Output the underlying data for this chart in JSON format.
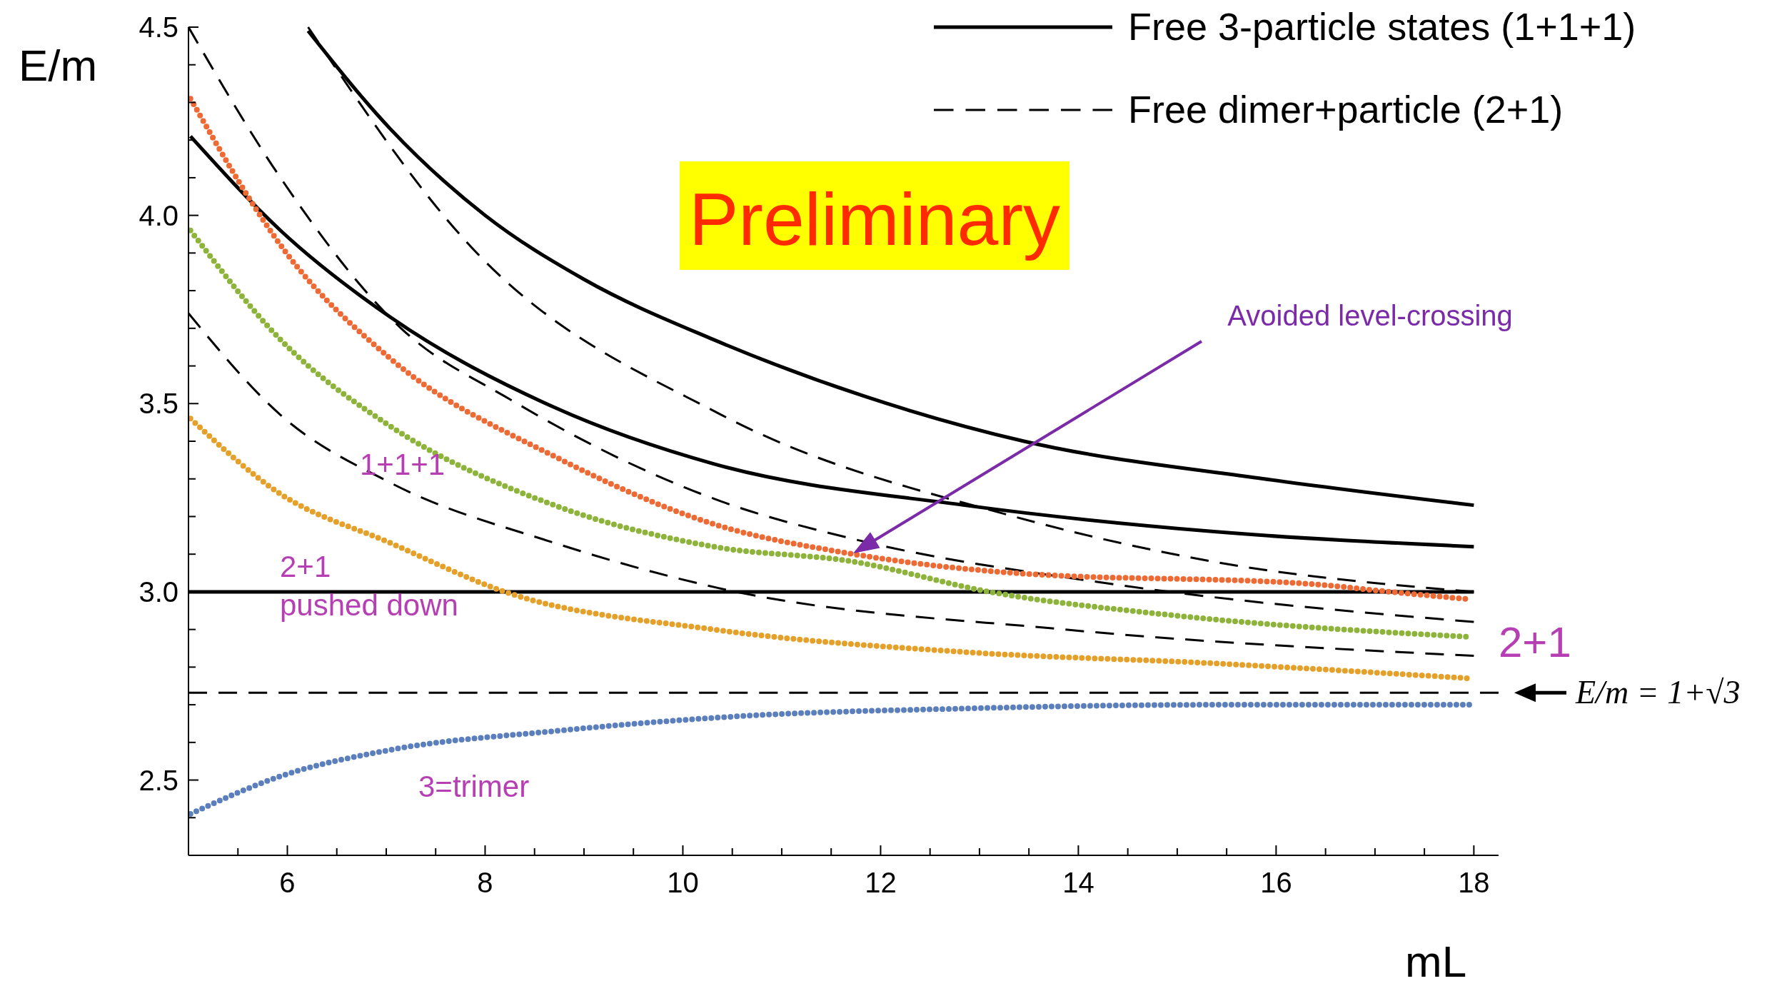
{
  "chart_data": {
    "type": "line",
    "xlabel": "mL",
    "ylabel": "E/m",
    "xlim": [
      5,
      18.25
    ],
    "ylim": [
      2.3,
      4.5
    ],
    "xticks": [
      {
        "value": 5,
        "label": null
      },
      {
        "value": 5.5,
        "label": null
      },
      6,
      {
        "value": 6.5,
        "label": null
      },
      {
        "value": 7,
        "label": null
      },
      {
        "value": 7.5,
        "label": null
      },
      8,
      {
        "value": 8.5,
        "label": null
      },
      {
        "value": 9,
        "label": null
      },
      {
        "value": 9.5,
        "label": null
      },
      10,
      {
        "value": 10.5,
        "label": null
      },
      {
        "value": 11,
        "label": null
      },
      {
        "value": 11.5,
        "label": null
      },
      12,
      {
        "value": 12.5,
        "label": null
      },
      {
        "value": 13,
        "label": null
      },
      {
        "value": 13.5,
        "label": null
      },
      14,
      {
        "value": 14.5,
        "label": null
      },
      {
        "value": 15,
        "label": null
      },
      {
        "value": 15.5,
        "label": null
      },
      16,
      {
        "value": 16.5,
        "label": null
      },
      {
        "value": 17,
        "label": null
      },
      {
        "value": 17.5,
        "label": null
      },
      18
    ],
    "yticks": [
      {
        "value": 2.3,
        "label": null
      },
      {
        "value": 2.4,
        "label": null
      },
      2.5,
      {
        "value": 2.6,
        "label": null
      },
      {
        "value": 2.7,
        "label": null
      },
      {
        "value": 2.8,
        "label": null
      },
      {
        "value": 2.9,
        "label": null
      },
      {
        "value": 3,
        "label": "3.0"
      },
      {
        "value": 3.1,
        "label": null
      },
      {
        "value": 3.2,
        "label": null
      },
      {
        "value": 3.3,
        "label": null
      },
      {
        "value": 3.4,
        "label": null
      },
      3.5,
      {
        "value": 3.6,
        "label": null
      },
      {
        "value": 3.7,
        "label": null
      },
      {
        "value": 3.8,
        "label": null
      },
      {
        "value": 3.9,
        "label": null
      },
      {
        "value": 4,
        "label": "4.0"
      },
      {
        "value": 4.1,
        "label": null
      },
      {
        "value": 4.2,
        "label": null
      },
      {
        "value": 4.3,
        "label": null
      },
      {
        "value": 4.4,
        "label": null
      },
      4.5
    ],
    "grid": false,
    "legend": "top right",
    "series": [
      {
        "name": "Free 3-particle states (1+1+1)",
        "color": "#000000",
        "line_style": "solid",
        "x": [
          6.21,
          7.04,
          8,
          9,
          10.31,
          11.83,
          13.45,
          15.88,
          18
        ],
        "values": [
          4.49,
          4.23,
          4,
          3.83,
          3.67,
          3.52,
          3.4,
          3.3,
          3.23
        ]
      },
      {
        "color": "#000000",
        "line_style": "solid",
        "x": [
          5.02,
          5.93,
          7.04,
          8.7,
          10.31,
          12.85,
          15.37,
          18
        ],
        "values": [
          4.21,
          3.96,
          3.73,
          3.49,
          3.34,
          3.23,
          3.16,
          3.12
        ]
      },
      {
        "color": "#000000",
        "line_style": "solid",
        "x": [
          5,
          18
        ],
        "values": [
          3,
          3
        ]
      },
      {
        "name": "Free dimer+particle (2+1)",
        "color": "#000000",
        "line_style": "dashed",
        "x": [
          6.21,
          7.81,
          10.39,
          13.35,
          15.37,
          18
        ],
        "values": [
          4.5,
          3.93,
          3.47,
          3.2,
          3.08,
          3
        ]
      },
      {
        "color": "#000000",
        "line_style": "dashed",
        "x": [
          5,
          5.93,
          7.15,
          8.26,
          10.39,
          11.73,
          14.36,
          18
        ],
        "values": [
          4.5,
          4.1,
          3.7,
          3.51,
          3.24,
          3.14,
          3.02,
          2.92
        ]
      },
      {
        "color": "#000000",
        "line_style": "dashed",
        "x": [
          5,
          5.93,
          7.04,
          8.7,
          10.36,
          13.86,
          18
        ],
        "values": [
          3.74,
          3.47,
          3.29,
          3.13,
          3.01,
          2.9,
          2.83
        ]
      },
      {
        "color": "#ee6a35",
        "line_style": "dotted",
        "x": [
          5.02,
          5.99,
          7.04,
          8.7,
          10.31,
          11.73,
          13.35,
          16.39,
          17.15,
          17.96
        ],
        "values": [
          4.31,
          3.9,
          3.62,
          3.36,
          3.18,
          3.1,
          3.05,
          3.02,
          3,
          2.98
        ]
      },
      {
        "color": "#8db33a",
        "line_style": "dotted",
        "x": [
          5.02,
          5.93,
          7.04,
          8.7,
          10.31,
          11.73,
          13.1,
          14.87,
          17.96
        ],
        "values": [
          3.96,
          3.67,
          3.44,
          3.23,
          3.12,
          3.08,
          3,
          2.94,
          2.88
        ]
      },
      {
        "color": "#e5a02a",
        "line_style": "dotted",
        "x": [
          5.02,
          5.93,
          7.04,
          8.2,
          10.31,
          12.85,
          15.37,
          17.96
        ],
        "values": [
          3.46,
          3.26,
          3.13,
          3,
          2.9,
          2.84,
          2.81,
          2.77
        ]
      },
      {
        "color": "#5b7fbd",
        "line_style": "dotted",
        "x": [
          5.02,
          5.93,
          7.04,
          8.7,
          10.6,
          12.85,
          15.37,
          17.96
        ],
        "values": [
          2.41,
          2.51,
          2.58,
          2.63,
          2.67,
          2.69,
          2.7,
          2.7
        ]
      }
    ],
    "ref_lines": [
      {
        "axis": "y",
        "value": 2.732,
        "label": "E/m = 1+√3",
        "line_style": "dashed",
        "color": "#000000"
      }
    ],
    "annotations": [
      "Avoided level-crossing",
      "1+1+1",
      "2+1\npushed down",
      "3=trimer",
      "Preliminary",
      "2+1"
    ]
  }
}
